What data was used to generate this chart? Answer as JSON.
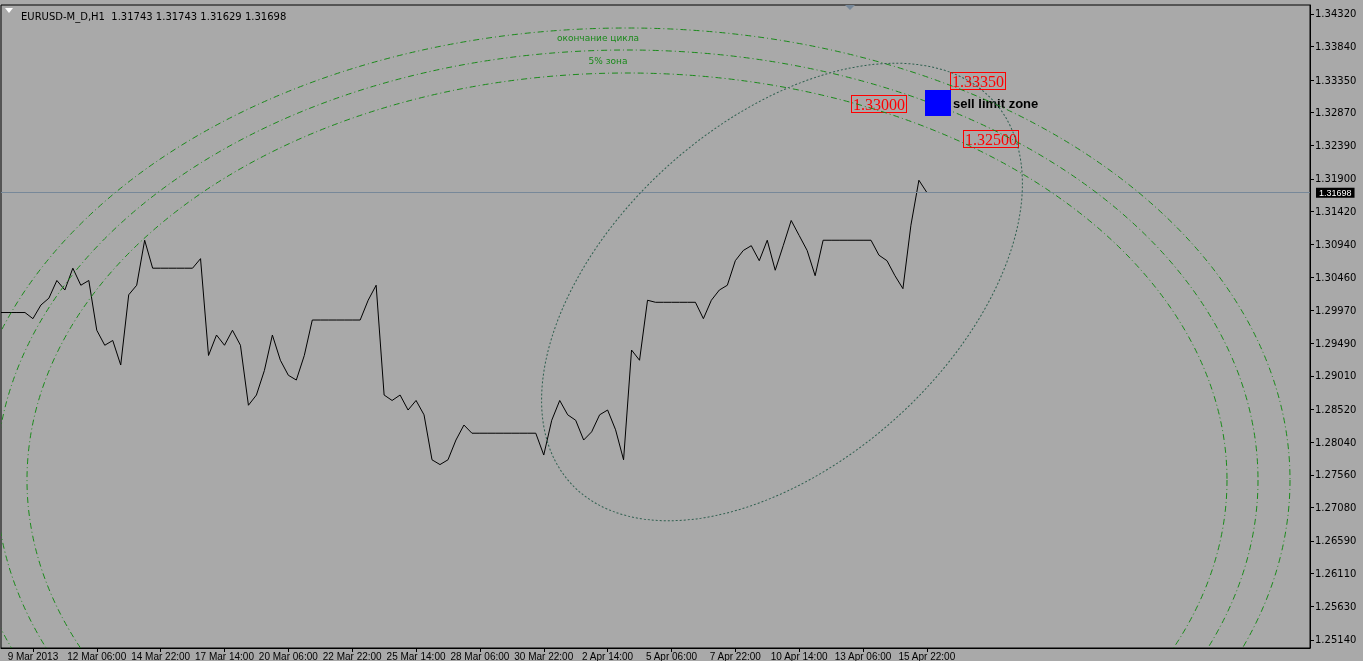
{
  "chart_data": {
    "type": "line",
    "title": "EURUSD-M_D,H1  1.31743 1.31743 1.31629 1.31698",
    "categories": [
      null,
      null,
      null,
      null,
      "9 Mar 2013",
      null,
      null,
      null,
      null,
      null,
      null,
      null,
      "12 Mar 06:00",
      null,
      null,
      null,
      null,
      null,
      null,
      null,
      "14 Mar 22:00",
      null,
      null,
      null,
      null,
      null,
      null,
      null,
      "17 Mar 14:00",
      null,
      null,
      null,
      null,
      null,
      null,
      null,
      "20 Mar 06:00",
      null,
      null,
      null,
      null,
      null,
      null,
      null,
      "22 Mar 22:00",
      null,
      null,
      null,
      null,
      null,
      null,
      null,
      "25 Mar 14:00",
      null,
      null,
      null,
      null,
      null,
      null,
      null,
      "28 Mar 06:00",
      null,
      null,
      null,
      null,
      null,
      null,
      null,
      "30 Mar 22:00",
      null,
      null,
      null,
      null,
      null,
      null,
      null,
      "2 Apr 14:00",
      null,
      null,
      null,
      null,
      null,
      null,
      null,
      "5 Apr 06:00",
      null,
      null,
      null,
      null,
      null,
      null,
      null,
      "7 Apr 22:00",
      null,
      null,
      null,
      null,
      null,
      null,
      null,
      "10 Apr 14:00",
      null,
      null,
      null,
      null,
      null,
      null,
      null,
      "13 Apr 06:00",
      null,
      null,
      null,
      null,
      null,
      null,
      null,
      "15 Apr 22:00",
      null,
      null,
      null,
      null,
      null,
      null,
      null,
      null,
      null,
      null,
      null,
      null,
      null,
      null,
      null,
      null,
      null,
      null,
      null,
      null,
      null,
      null,
      null,
      null,
      null,
      null,
      null,
      null,
      null,
      null,
      null,
      null,
      null,
      null,
      null,
      null,
      null,
      null,
      null,
      null,
      null,
      null,
      null,
      null,
      null,
      null,
      null,
      null
    ],
    "series": [
      {
        "color": "#000000",
        "values": [
          1.2994,
          1.2994,
          1.2994,
          1.2994,
          1.2985,
          1.3005,
          1.3015,
          1.3041,
          1.3027,
          1.3059,
          1.3034,
          1.3041,
          1.2968,
          1.2946,
          1.2953,
          1.2917,
          1.302,
          1.3034,
          1.31,
          1.3059,
          1.3059,
          1.3059,
          1.3059,
          1.3059,
          1.3059,
          1.3073,
          1.2931,
          1.2961,
          1.2946,
          1.2968,
          1.2946,
          1.2858,
          1.2873,
          1.2909,
          1.2961,
          1.2924,
          1.2902,
          1.2895,
          1.2931,
          1.2983,
          1.2983,
          1.2983,
          1.2983,
          1.2983,
          1.2983,
          1.2983,
          1.3012,
          1.3034,
          1.2873,
          1.2865,
          1.2873,
          1.2851,
          1.2865,
          1.2844,
          1.2778,
          1.2771,
          1.2778,
          1.2807,
          1.2829,
          1.2817,
          1.2817,
          1.2817,
          1.2817,
          1.2817,
          1.2817,
          1.2817,
          1.2817,
          1.2817,
          1.2785,
          1.2836,
          1.2865,
          1.2844,
          1.2836,
          1.2807,
          1.2819,
          1.2844,
          1.2851,
          1.2822,
          1.2778,
          1.2939,
          1.2924,
          1.3012,
          1.3009,
          1.3009,
          1.3009,
          1.3009,
          1.3009,
          1.3009,
          1.2985,
          1.3012,
          1.3027,
          1.3034,
          1.307,
          1.3085,
          1.3092,
          1.307,
          1.31,
          1.3056,
          1.3092,
          1.3129,
          1.3107,
          1.3085,
          1.3048,
          1.31,
          1.31,
          1.31,
          1.31,
          1.31,
          1.31,
          1.31,
          1.3078,
          1.307,
          1.3048,
          1.3029,
          1.3122,
          1.3188,
          1.317,
          null,
          null,
          null,
          null,
          null,
          null,
          null,
          null,
          null,
          null,
          null,
          null,
          null,
          null,
          null,
          null,
          null,
          null,
          null,
          null,
          null,
          null,
          null,
          null,
          null,
          null,
          null,
          null,
          null,
          null,
          null,
          null,
          null,
          null,
          null,
          null,
          null,
          null,
          null,
          null,
          null,
          null,
          null,
          null,
          null,
          null,
          null,
          null
        ]
      }
    ],
    "ylim": [
      1.2502,
      1.3445
    ],
    "yticks": [
      {
        "value": 1.2514,
        "label": "1.25140"
      },
      {
        "value": 1.2563,
        "label": "1.25630"
      },
      {
        "value": 1.2611,
        "label": "1.26110"
      },
      {
        "value": 1.2659,
        "label": "1.26590"
      },
      {
        "value": 1.2708,
        "label": "1.27080"
      },
      {
        "value": 1.2756,
        "label": "1.27560"
      },
      {
        "value": 1.2804,
        "label": "1.28040"
      },
      {
        "value": 1.2852,
        "label": "1.28520"
      },
      {
        "value": 1.2901,
        "label": "1.29010"
      },
      {
        "value": 1.2949,
        "label": "1.29490"
      },
      {
        "value": 1.2997,
        "label": "1.29970"
      },
      {
        "value": 1.3046,
        "label": "1.30460"
      },
      {
        "value": 1.3094,
        "label": "1.30940"
      },
      {
        "value": 1.3142,
        "label": "1.31420"
      },
      {
        "value": 1.319,
        "label": "1.31900"
      },
      {
        "value": 1.3239,
        "label": "1.32390"
      },
      {
        "value": 1.3287,
        "label": "1.32870"
      },
      {
        "value": 1.3335,
        "label": "1.33350"
      },
      {
        "value": 1.3384,
        "label": "1.33840"
      },
      {
        "value": 1.3432,
        "label": "1.34320"
      }
    ],
    "marker": "none",
    "ref_lines": [
      {
        "axis": "y",
        "value": 1.31698,
        "label": "1.31698",
        "color": "#778899"
      }
    ],
    "annotations": [
      "окончание цикла",
      "5% зона",
      "1.33350",
      "1.33000",
      "sell limit zone",
      "1.32500"
    ]
  }
}
